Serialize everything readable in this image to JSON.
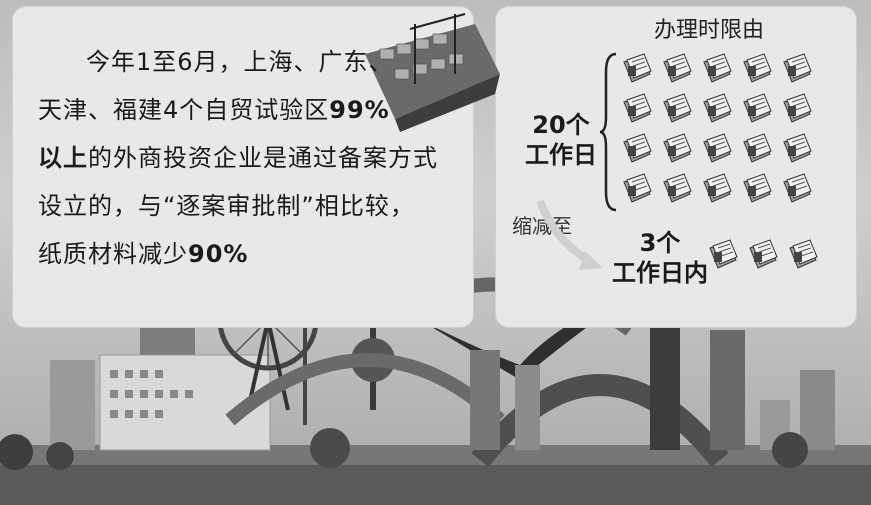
{
  "left_panel": {
    "line1": "今年1至6月，上海、广东、",
    "line2": "天津、福建4个自贸试验区",
    "line2_bold": "99%",
    "line3_bold": "以上",
    "line3": "的外商投资企业是通过备案方式",
    "line4": "设立的，与“逐案审批制”相比较，",
    "line5": "纸质材料减少",
    "line5_bold": "90%"
  },
  "right_panel": {
    "title": "办理时限由",
    "from_label_1": "20个",
    "from_label_2": "工作日",
    "shrink_label": "缩减至",
    "to_label_1": "3个",
    "to_label_2": "工作日内",
    "from_doc_count": 20,
    "to_doc_count": 3
  }
}
